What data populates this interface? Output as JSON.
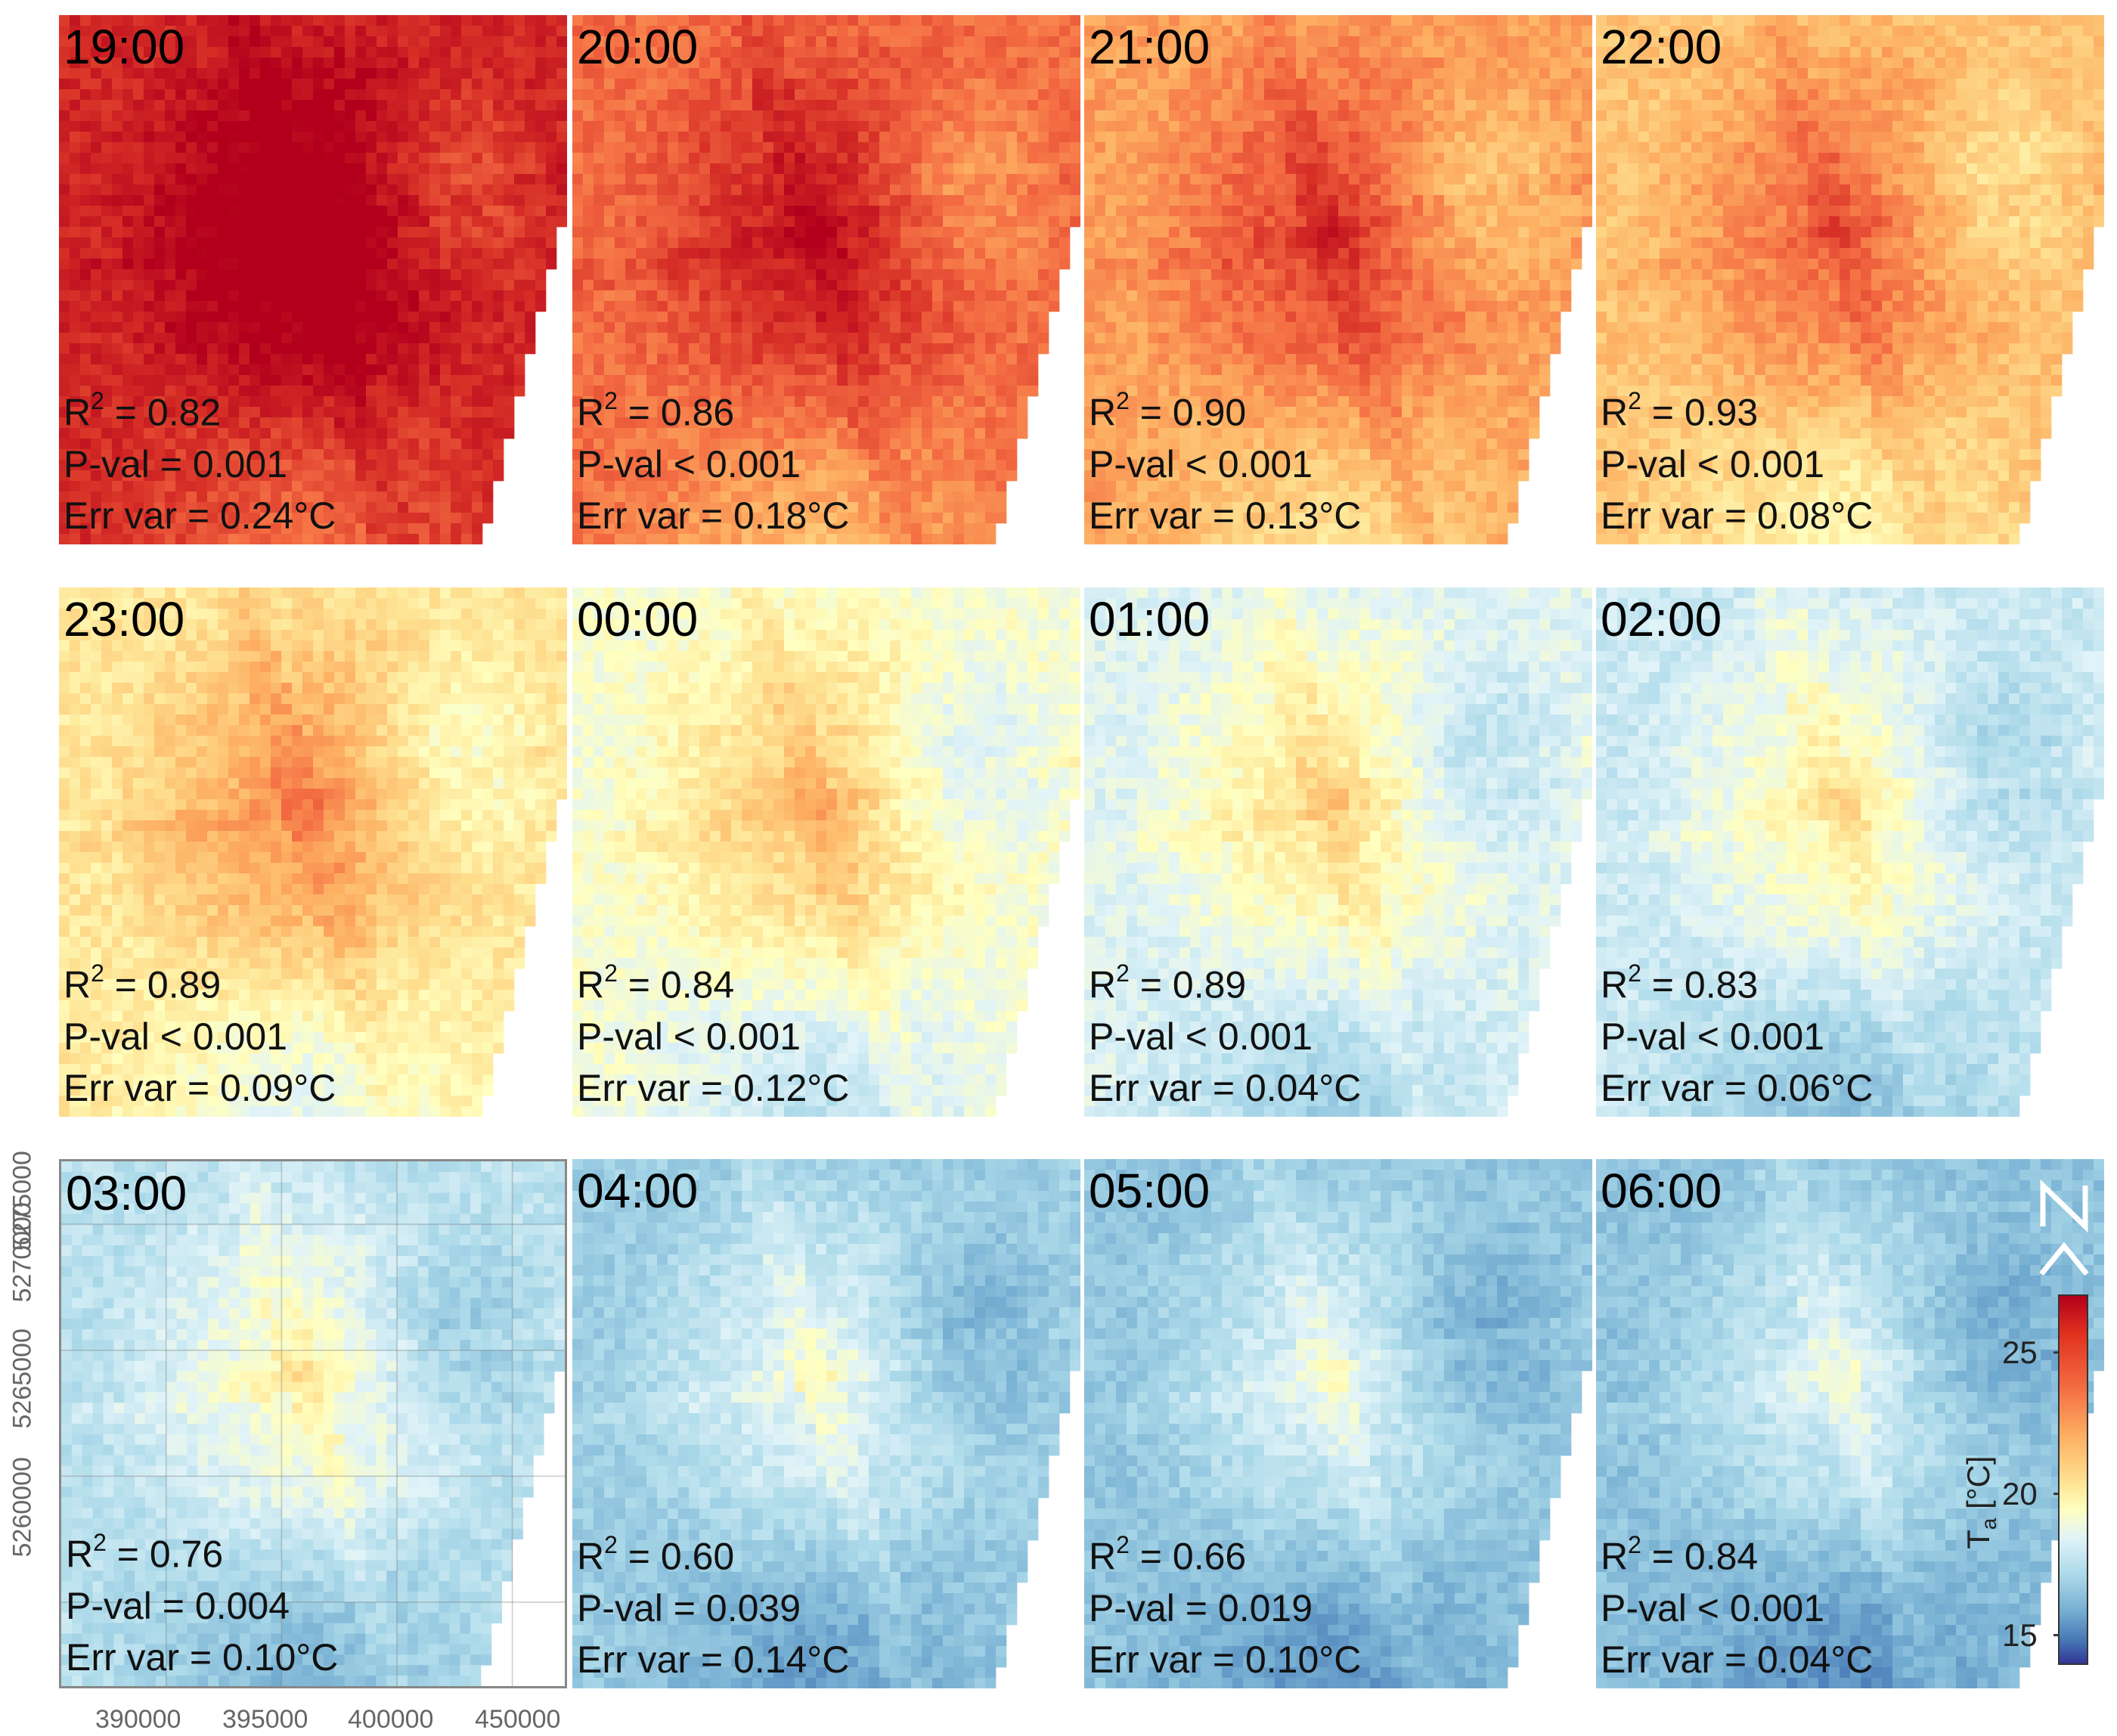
{
  "panels": [
    {
      "time": "19:00",
      "r2": "0.82",
      "pval": "P-val = 0.001",
      "errvar": "Err var = 0.24°C",
      "level": 0.92
    },
    {
      "time": "20:00",
      "r2": "0.86",
      "pval": "P-val < 0.001",
      "errvar": "Err var = 0.18°C",
      "level": 0.8
    },
    {
      "time": "21:00",
      "r2": "0.90",
      "pval": "P-val < 0.001",
      "errvar": "Err var = 0.13°C",
      "level": 0.72
    },
    {
      "time": "22:00",
      "r2": "0.93",
      "pval": "P-val < 0.001",
      "errvar": "Err var = 0.08°C",
      "level": 0.66
    },
    {
      "time": "23:00",
      "r2": "0.89",
      "pval": "P-val < 0.001",
      "errvar": "Err var = 0.09°C",
      "level": 0.58
    },
    {
      "time": "00:00",
      "r2": "0.84",
      "pval": "P-val < 0.001",
      "errvar": "Err var = 0.12°C",
      "level": 0.5
    },
    {
      "time": "01:00",
      "r2": "0.89",
      "pval": "P-val < 0.001",
      "errvar": "Err var = 0.04°C",
      "level": 0.44
    },
    {
      "time": "02:00",
      "r2": "0.83",
      "pval": "P-val < 0.001",
      "errvar": "Err var = 0.06°C",
      "level": 0.4
    },
    {
      "time": "03:00",
      "r2": "0.76",
      "pval": "P-val = 0.004",
      "errvar": "Err var = 0.10°C",
      "level": 0.37
    },
    {
      "time": "04:00",
      "r2": "0.60",
      "pval": "P-val = 0.039",
      "errvar": "Err var = 0.14°C",
      "level": 0.31
    },
    {
      "time": "05:00",
      "r2": "0.66",
      "pval": "P-val = 0.019",
      "errvar": "Err var = 0.10°C",
      "level": 0.29
    },
    {
      "time": "06:00",
      "r2": "0.84",
      "pval": "P-val < 0.001",
      "errvar": "Err var = 0.04°C",
      "level": 0.28
    }
  ],
  "axes": {
    "y_ticks": [
      "5260000",
      "5265000",
      "5270000",
      "5275000"
    ],
    "x_ticks": [
      "390000",
      "395000",
      "400000",
      "450000"
    ]
  },
  "colorbar": {
    "label_main": "T",
    "label_sub": "a",
    "label_unit": "[°C]",
    "ticks": [
      "25",
      "20",
      "15"
    ],
    "tick_values": [
      25,
      20,
      15
    ],
    "range": [
      14,
      27
    ]
  },
  "north_arrow": "N"
}
